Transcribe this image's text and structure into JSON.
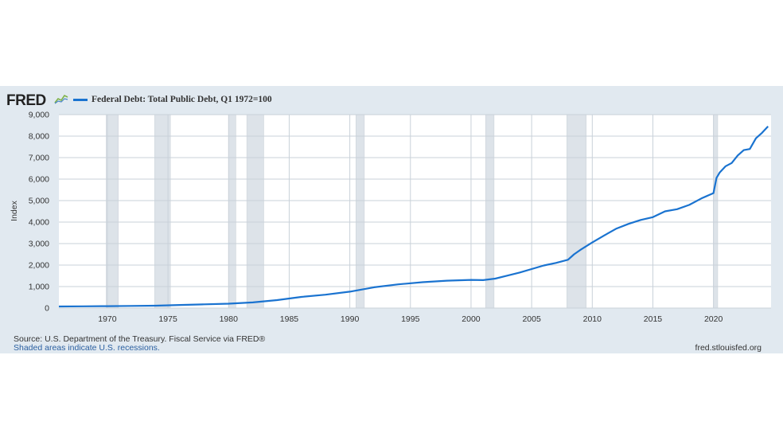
{
  "header": {
    "logo_text": "FRED",
    "logo_icon": "fred-chart-icon",
    "legend_label": "Federal Debt: Total Public Debt, Q1 1972=100"
  },
  "footer": {
    "source": "Source: U.S. Department of the Treasury. Fiscal Service via FRED®",
    "shaded_note": "Shaded areas indicate U.S. recessions.",
    "site": "fred.stlouisfed.org"
  },
  "colors": {
    "line": "#1a73d0",
    "recession": "#dde3e9",
    "panel": "#e1e9f0",
    "grid": "#c9d1d9"
  },
  "chart_data": {
    "type": "line",
    "title": "",
    "xlabel": "",
    "ylabel": "Index",
    "xlim": [
      1966.0,
      2024.75
    ],
    "ylim": [
      0,
      9000
    ],
    "yticks": [
      0,
      1000,
      2000,
      3000,
      4000,
      5000,
      6000,
      7000,
      8000,
      9000
    ],
    "ytick_labels": [
      "0",
      "1,000",
      "2,000",
      "3,000",
      "4,000",
      "5,000",
      "6,000",
      "7,000",
      "8,000",
      "9,000"
    ],
    "xticks": [
      1970,
      1975,
      1980,
      1985,
      1990,
      1995,
      2000,
      2005,
      2010,
      2015,
      2020
    ],
    "grid": true,
    "legend": "top-left",
    "recessions": [
      [
        1969.9,
        1970.9
      ],
      [
        1973.9,
        1975.2
      ],
      [
        1980.0,
        1980.6
      ],
      [
        1981.5,
        1982.9
      ],
      [
        1990.5,
        1991.2
      ],
      [
        2001.2,
        2001.9
      ],
      [
        2007.9,
        2009.5
      ],
      [
        2020.0,
        2020.35
      ]
    ],
    "series": [
      {
        "name": "Federal Debt: Total Public Debt, Q1 1972=100",
        "x": [
          1966.0,
          1968,
          1970,
          1972,
          1974,
          1976,
          1978,
          1980,
          1982,
          1984,
          1986,
          1988,
          1990,
          1992,
          1994,
          1996,
          1998,
          2000,
          2001,
          2002,
          2004,
          2006,
          2007,
          2008,
          2008.5,
          2009,
          2010,
          2011,
          2012,
          2013,
          2014,
          2015,
          2016,
          2017,
          2018,
          2019,
          2020.0,
          2020.25,
          2020.5,
          2021,
          2021.5,
          2022,
          2022.5,
          2023,
          2023.5,
          2024,
          2024.5
        ],
        "values": [
          75,
          82,
          88,
          100,
          112,
          145,
          175,
          205,
          262,
          372,
          518,
          622,
          763,
          968,
          1105,
          1205,
          1275,
          1310,
          1300,
          1370,
          1650,
          1980,
          2100,
          2250,
          2500,
          2700,
          3050,
          3380,
          3700,
          3920,
          4100,
          4230,
          4500,
          4600,
          4800,
          5100,
          5350,
          6050,
          6300,
          6600,
          6750,
          7100,
          7350,
          7400,
          7900,
          8150,
          8450
        ]
      }
    ]
  }
}
